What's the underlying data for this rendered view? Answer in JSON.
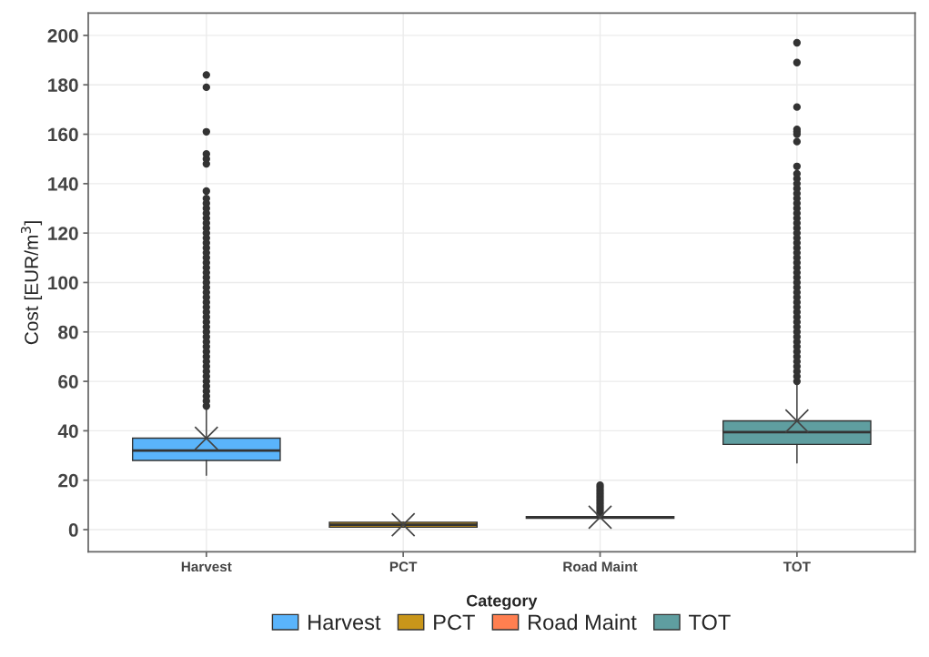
{
  "chart_data": {
    "type": "box",
    "ylabel": "Cost [EUR/m$^{3}$]",
    "legend_title": "Category",
    "categories": [
      "Harvest",
      "PCT",
      "Road Maint",
      "TOT"
    ],
    "series": [
      {
        "name": "Harvest",
        "color": "#5ab4fb",
        "boxes": [
          {
            "low": 22,
            "q1": 28,
            "median": 32,
            "q3": 37,
            "high": 49,
            "mean": 37,
            "outliers": [
              50,
              52,
              54,
              56,
              58,
              60,
              62,
              64,
              66,
              68,
              70,
              72,
              74,
              76,
              78,
              80,
              82,
              84,
              86,
              88,
              90,
              92,
              94,
              96,
              98,
              100,
              102,
              104,
              106,
              108,
              110,
              112,
              114,
              116,
              118,
              120,
              122,
              124,
              126,
              128,
              130,
              132,
              134,
              137,
              148,
              150,
              152,
              161,
              179,
              184
            ]
          },
          null,
          null,
          null
        ]
      },
      {
        "name": "PCT",
        "color": "#c9961a",
        "boxes": [
          null,
          {
            "low": 1,
            "q1": 1,
            "median": 2,
            "q3": 3,
            "high": 3,
            "mean": 2
          },
          null,
          null
        ]
      },
      {
        "name": "Road Maint",
        "color": "#ff7f50",
        "boxes": [
          null,
          null,
          {
            "low": 4.5,
            "q1": 4.6,
            "median": 5,
            "q3": 5.3,
            "high": 5.8,
            "mean": 5,
            "outliers": [
              6,
              7,
              8,
              9,
              10,
              11,
              12,
              13,
              14,
              15,
              16,
              17,
              18
            ]
          },
          null
        ]
      },
      {
        "name": "TOT",
        "color": "#5f9ea0",
        "boxes": [
          null,
          null,
          null,
          {
            "low": 27,
            "q1": 34.5,
            "median": 39.5,
            "q3": 44,
            "high": 59,
            "mean": 44,
            "outliers": [
              60,
              62,
              64,
              66,
              68,
              70,
              72,
              74,
              76,
              78,
              80,
              82,
              84,
              86,
              88,
              90,
              92,
              94,
              96,
              98,
              100,
              102,
              104,
              106,
              108,
              110,
              112,
              114,
              116,
              118,
              120,
              122,
              124,
              126,
              128,
              130,
              132,
              134,
              136,
              138,
              140,
              142,
              144,
              147,
              157,
              160,
              161,
              162,
              171,
              189,
              197
            ]
          }
        ]
      }
    ],
    "ylim": [
      -9,
      209
    ],
    "yticks": [
      0,
      20,
      40,
      60,
      80,
      100,
      120,
      140,
      160,
      180,
      200
    ],
    "grid": true,
    "legend": "bottom"
  }
}
